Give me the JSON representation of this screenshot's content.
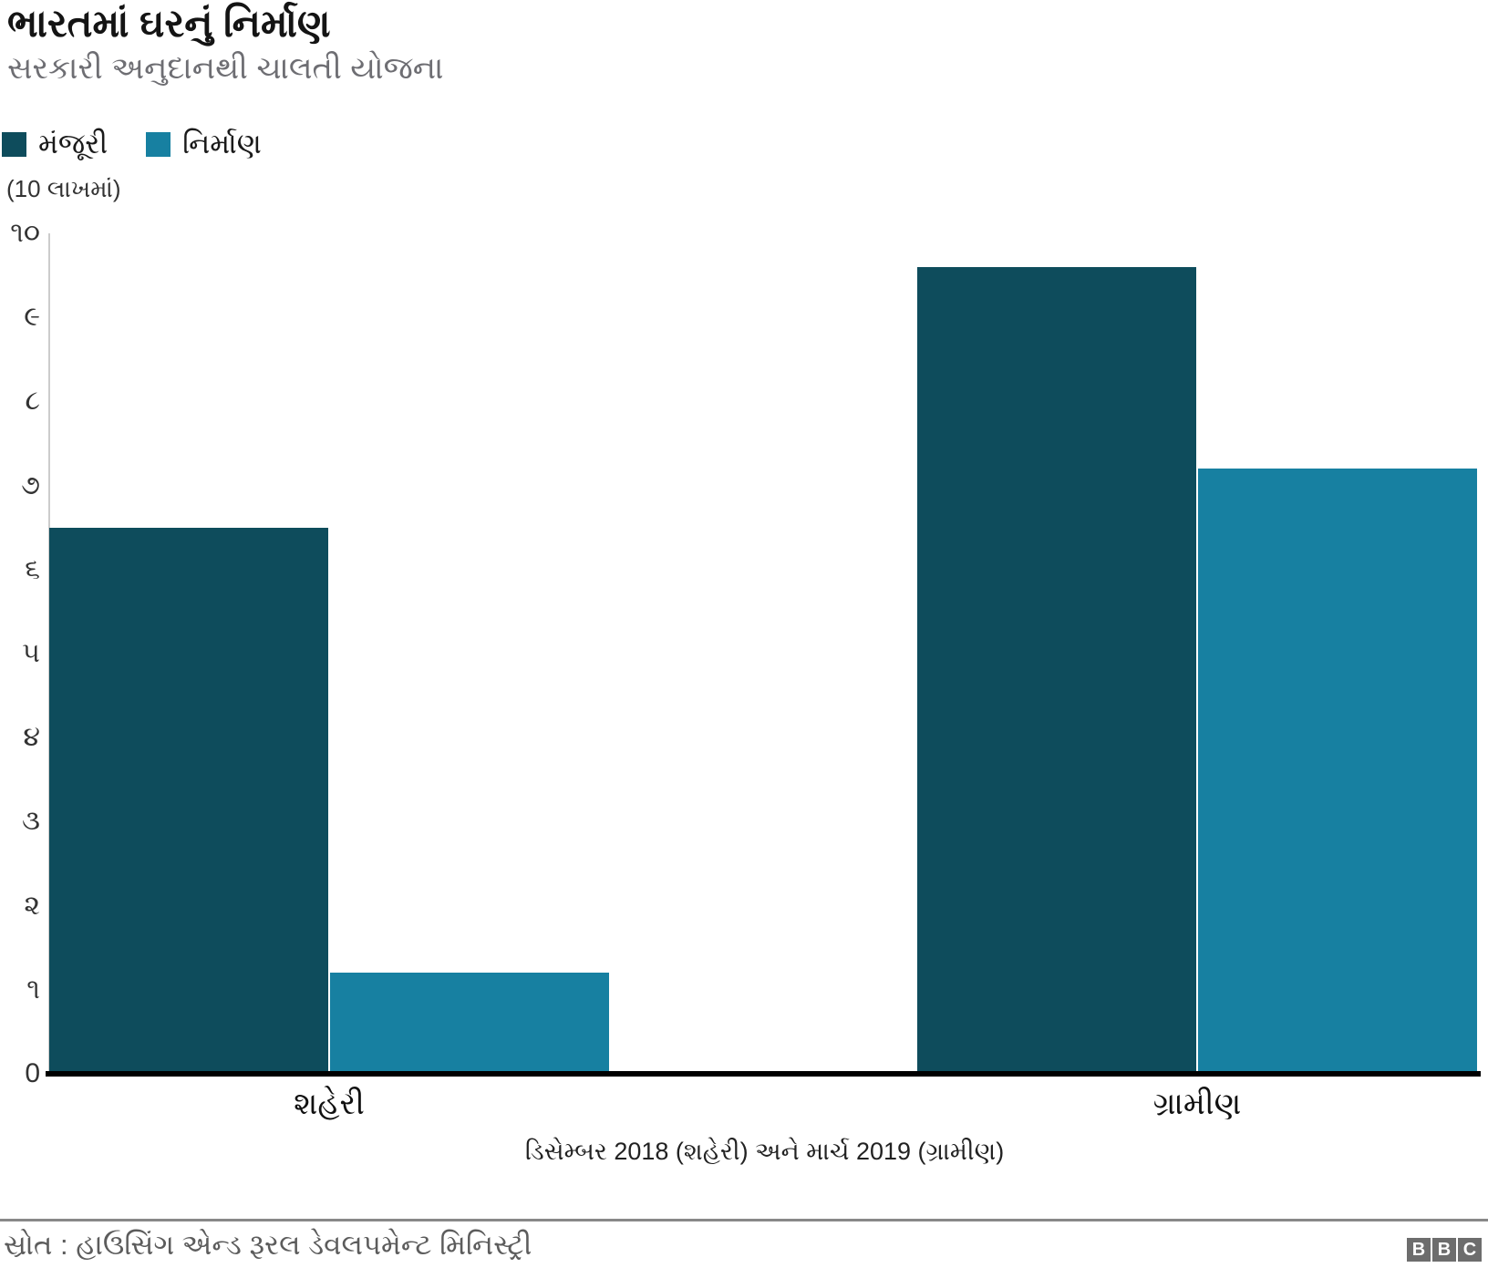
{
  "header": {
    "title": "ભારતમાં ઘરનું નિર્માણ",
    "subtitle": "સરકારી અનુદાનથી ચાલતી યોજના"
  },
  "colors": {
    "approved": "#0e4c5c",
    "built": "#1780a1",
    "axis_line": "#cccccc",
    "baseline": "#000000",
    "subtitle_gray": "#6e6e73",
    "source_gray": "#5c5c5c",
    "bbc_gray": "#6d6d6d"
  },
  "chart_data": {
    "type": "bar",
    "title": "ભારતમાં ઘરનું નિર્માણ",
    "subtitle": "સરકારી અનુદાનથી ચાલતી યોજના",
    "unit_label": "(10 લાખમાં)",
    "categories": [
      "શહેરી",
      "ગ્રામીણ"
    ],
    "series": [
      {
        "name": "મંજૂરી",
        "color": "#0e4c5c",
        "values": [
          6.5,
          9.6
        ]
      },
      {
        "name": "નિર્માણ",
        "color": "#1780a1",
        "values": [
          1.2,
          7.2
        ]
      }
    ],
    "ylim": [
      0,
      10
    ],
    "yticks": [
      {
        "value": 10,
        "label": "૧૦"
      },
      {
        "value": 9,
        "label": "૯"
      },
      {
        "value": 8,
        "label": "૮"
      },
      {
        "value": 7,
        "label": "૭"
      },
      {
        "value": 6,
        "label": "૬"
      },
      {
        "value": 5,
        "label": "૫"
      },
      {
        "value": 4,
        "label": "૪"
      },
      {
        "value": 3,
        "label": "૩"
      },
      {
        "value": 2,
        "label": "૨"
      },
      {
        "value": 1,
        "label": "૧"
      },
      {
        "value": 0,
        "label": "0"
      }
    ],
    "xlabel": "ડિસેમ્બર 2018 (શહેરી) અને માર્ચ 2019 (ગ્રામીણ)",
    "grid": false,
    "legend_position": "top-left"
  },
  "footer": {
    "source": "સ્રોત : હાઉસિંગ એન્ડ રૂરલ ડેવલપમેન્ટ મિનિસ્ટ્રી",
    "logo_blocks": [
      "B",
      "B",
      "C"
    ]
  }
}
